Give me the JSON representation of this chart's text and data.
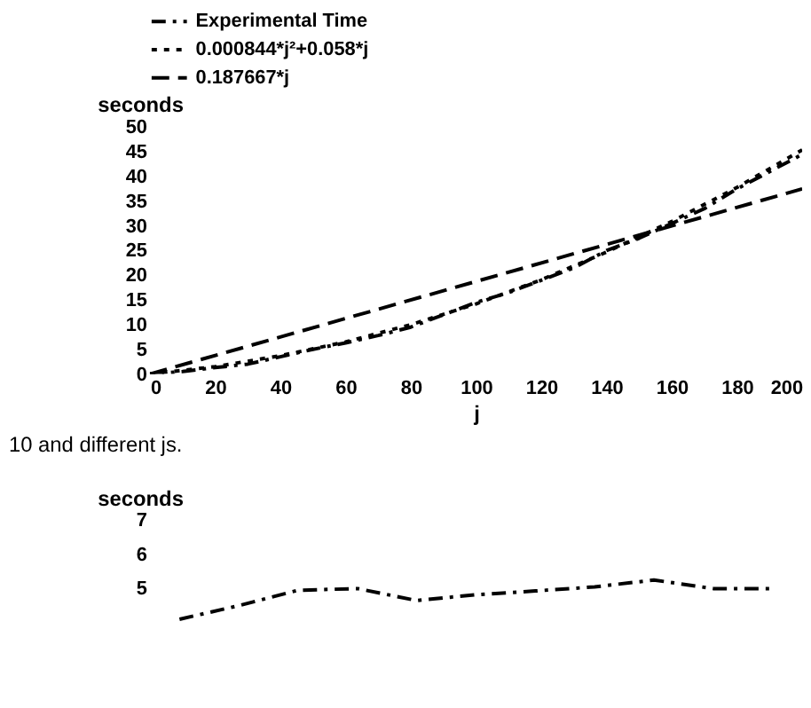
{
  "chart_data": [
    {
      "type": "line",
      "ylabel": "seconds",
      "xlabel": "j",
      "xlim": [
        0,
        200
      ],
      "xticks": [
        0,
        20,
        40,
        60,
        80,
        100,
        120,
        140,
        160,
        180,
        200
      ],
      "ylim": [
        0,
        50
      ],
      "yticks": [
        0,
        5,
        10,
        15,
        20,
        25,
        30,
        35,
        40,
        45,
        50
      ],
      "grid": false,
      "legend": "top",
      "marker": "none",
      "annotations": [
        "10 and different js."
      ],
      "series": [
        {
          "name": "Experimental Time",
          "color": "#000000",
          "line_style": "dashdot",
          "x": [
            0,
            10,
            20,
            30,
            40,
            50,
            60,
            70,
            80,
            90,
            100,
            110,
            120,
            130,
            140,
            150,
            160,
            170,
            180,
            190,
            200
          ],
          "values": [
            0,
            0.5,
            1.3,
            2,
            3.5,
            5,
            6.3,
            7.8,
            9.5,
            12,
            14.5,
            16.5,
            19,
            21.5,
            25,
            27.5,
            30.5,
            33.5,
            37.5,
            41,
            44.5
          ]
        },
        {
          "name": "0.000844*j²+0.058*j",
          "color": "#000000",
          "line_style": "dotted",
          "x": [
            0,
            20,
            40,
            60,
            80,
            100,
            120,
            140,
            160,
            180,
            200
          ],
          "values": [
            0,
            1.5,
            3.7,
            6.5,
            10,
            14.2,
            19.1,
            24.7,
            30.9,
            37.8,
            45.4
          ]
        },
        {
          "name": "0.187667*j",
          "color": "#000000",
          "line_style": "dashed",
          "x": [
            0,
            200
          ],
          "values": [
            0,
            37.5
          ]
        }
      ]
    },
    {
      "type": "line",
      "ylabel": "seconds",
      "ylim": [
        3.9,
        7
      ],
      "yticks": [
        5,
        6,
        7
      ],
      "grid": false,
      "legend": false,
      "marker": "none",
      "tick_labels": "y",
      "categories": [
        null,
        null,
        null,
        null,
        null,
        null,
        null,
        null,
        null,
        null,
        null
      ],
      "series": [
        {
          "color": "#000000",
          "line_style": "dashdot",
          "values": [
            4.1,
            4.5,
            4.95,
            5.0,
            4.65,
            4.82,
            4.93,
            5.05,
            5.25,
            5.0,
            5.0
          ]
        }
      ]
    }
  ]
}
